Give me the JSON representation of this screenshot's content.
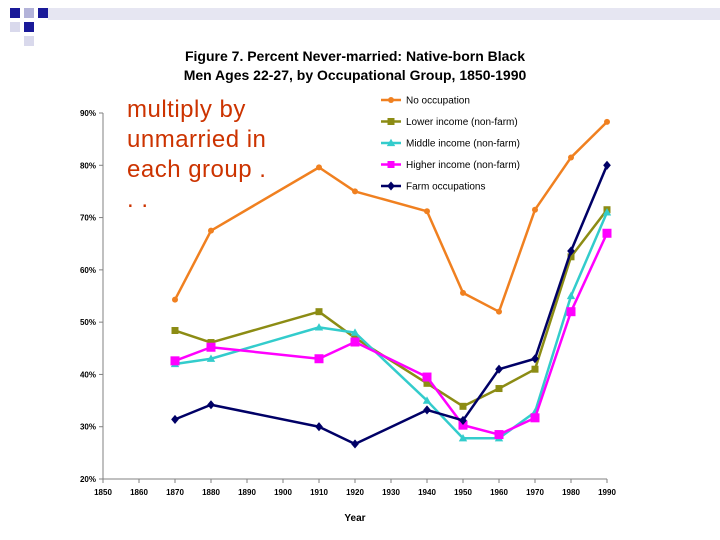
{
  "slide": {
    "text": "multiply by unmarried in each group . . .",
    "text_color": "#cc3300"
  },
  "chart_data": {
    "type": "line",
    "title_lines": [
      "Figure 7.  Percent Never-married:  Native-born Black",
      "Men Ages 22-27, by Occupational Group, 1850-1990"
    ],
    "xlabel": "Year",
    "ylabel": "",
    "xlim": [
      1850,
      1990
    ],
    "ylim": [
      20,
      90
    ],
    "x_ticks": [
      "1850",
      "1860",
      "1870",
      "1880",
      "1890",
      "1900",
      "1910",
      "1920",
      "1930",
      "1940",
      "1950",
      "1960",
      "1970",
      "1980",
      "1990"
    ],
    "y_ticks": [
      "20%",
      "30%",
      "40%",
      "50%",
      "60%",
      "70%",
      "80%",
      "90%"
    ],
    "grid": false,
    "legend_position": "top-right",
    "x": [
      1870,
      1880,
      1910,
      1920,
      1940,
      1950,
      1960,
      1970,
      1980,
      1990
    ],
    "series": [
      {
        "name": "No occupation",
        "color": "#f08020",
        "marker": "circle",
        "values": [
          54.3,
          67.5,
          79.6,
          75.0,
          71.2,
          55.6,
          52.0,
          71.5,
          81.5,
          88.3
        ]
      },
      {
        "name": "Lower income (non-farm)",
        "color": "#8c8c14",
        "marker": "square",
        "values": [
          48.4,
          46.1,
          52.0,
          47.0,
          38.3,
          33.9,
          37.3,
          41.0,
          62.5,
          71.5
        ]
      },
      {
        "name": "Middle income (non-farm)",
        "color": "#33cccc",
        "marker": "triangle",
        "values": [
          42.0,
          43.0,
          49.0,
          48.0,
          35.0,
          27.8,
          27.8,
          32.8,
          55.0,
          71.0
        ]
      },
      {
        "name": "Higher income (non-farm)",
        "color": "#ff00ff",
        "marker": "square",
        "values": [
          42.6,
          45.2,
          43.0,
          46.2,
          39.5,
          30.3,
          28.5,
          31.7,
          52.0,
          67.0
        ]
      },
      {
        "name": "Farm occupations",
        "color": "#000066",
        "marker": "diamond",
        "values": [
          31.4,
          34.2,
          30.0,
          26.7,
          33.2,
          31.2,
          41.0,
          43.0,
          63.6,
          80.0
        ]
      }
    ]
  }
}
